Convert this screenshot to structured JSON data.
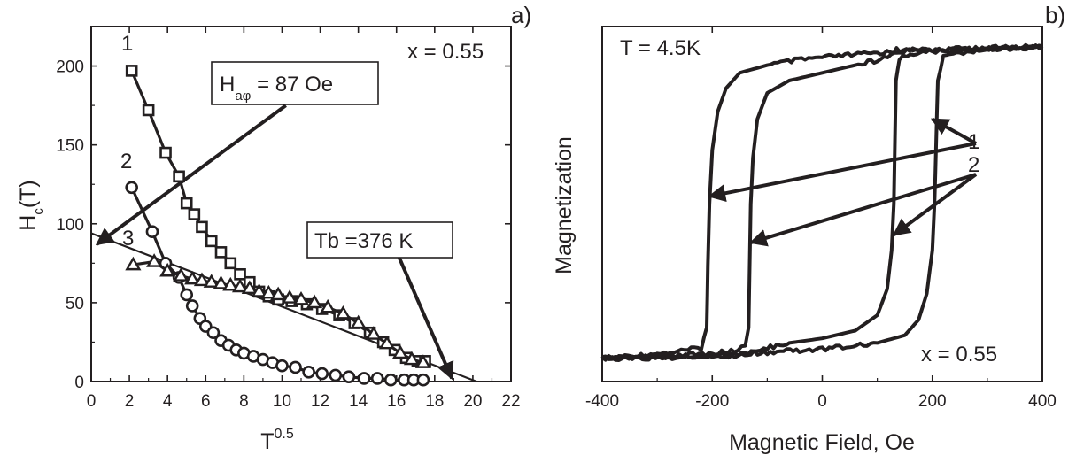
{
  "chart_data": [
    {
      "type": "scatter",
      "panel_label": "a)",
      "xlabel": {
        "base": "T",
        "sup": "0.5"
      },
      "ylabel": {
        "base": "H",
        "sub": "c",
        "rest": "(T)"
      },
      "xlim": [
        0,
        22
      ],
      "ylim": [
        0,
        225
      ],
      "xticks": [
        0,
        2,
        4,
        6,
        8,
        10,
        12,
        14,
        16,
        18,
        20,
        22
      ],
      "yticks": [
        0,
        50,
        100,
        150,
        200
      ],
      "composition_label": "x = 0.55",
      "annotations": [
        {
          "id": "ha",
          "base": "H",
          "sub": "aφ",
          "rest": " = 87 Oe",
          "arrow_to": [
            0.3,
            87
          ]
        },
        {
          "id": "tb",
          "text": "Tb =376 K",
          "arrow_to": [
            18.9,
            2
          ]
        }
      ],
      "series": [
        {
          "name": "1",
          "marker": "square",
          "points": [
            [
              2.12,
              197
            ],
            [
              3.0,
              172
            ],
            [
              3.9,
              145
            ],
            [
              4.6,
              130
            ],
            [
              5.0,
              113
            ],
            [
              5.4,
              106
            ],
            [
              5.8,
              98
            ],
            [
              6.3,
              89
            ],
            [
              6.8,
              82
            ],
            [
              7.3,
              75
            ],
            [
              7.8,
              68
            ],
            [
              8.3,
              63
            ],
            [
              8.8,
              57
            ],
            [
              9.3,
              54
            ],
            [
              9.8,
              52
            ],
            [
              10.5,
              51
            ],
            [
              11.3,
              49
            ],
            [
              12.1,
              46
            ],
            [
              13.0,
              42
            ],
            [
              13.8,
              37
            ],
            [
              14.6,
              31
            ],
            [
              15.3,
              25
            ],
            [
              15.9,
              20
            ],
            [
              16.5,
              15
            ],
            [
              17.1,
              13
            ],
            [
              17.5,
              13
            ]
          ]
        },
        {
          "name": "2",
          "marker": "circle",
          "points": [
            [
              2.12,
              123
            ],
            [
              3.2,
              95
            ],
            [
              3.9,
              75
            ],
            [
              4.6,
              66
            ],
            [
              5.0,
              55
            ],
            [
              5.3,
              48
            ],
            [
              5.7,
              40
            ],
            [
              6.0,
              35
            ],
            [
              6.4,
              31
            ],
            [
              6.8,
              26
            ],
            [
              7.2,
              23
            ],
            [
              7.6,
              20
            ],
            [
              8.0,
              18
            ],
            [
              8.5,
              16
            ],
            [
              9.0,
              14
            ],
            [
              9.5,
              12
            ],
            [
              10.0,
              10
            ],
            [
              10.7,
              9
            ],
            [
              11.4,
              6
            ],
            [
              12.1,
              5
            ],
            [
              12.8,
              4
            ],
            [
              13.5,
              3
            ],
            [
              14.3,
              2
            ],
            [
              15.0,
              2
            ],
            [
              15.7,
              1
            ],
            [
              16.4,
              1
            ],
            [
              16.9,
              1
            ],
            [
              17.4,
              1
            ]
          ]
        },
        {
          "name": "3",
          "marker": "triangle",
          "points": [
            [
              2.2,
              74
            ],
            [
              3.3,
              76
            ],
            [
              4.0,
              70
            ],
            [
              4.7,
              67
            ],
            [
              5.3,
              65
            ],
            [
              5.8,
              64
            ],
            [
              6.3,
              63
            ],
            [
              6.8,
              62
            ],
            [
              7.3,
              61
            ],
            [
              7.8,
              60
            ],
            [
              8.3,
              59
            ],
            [
              8.8,
              57
            ],
            [
              9.3,
              56
            ],
            [
              9.8,
              55
            ],
            [
              10.4,
              53
            ],
            [
              11.0,
              52
            ],
            [
              11.7,
              50
            ],
            [
              12.4,
              47
            ],
            [
              13.2,
              43
            ],
            [
              14.0,
              37
            ],
            [
              14.8,
              30
            ],
            [
              15.5,
              24
            ],
            [
              16.2,
              18
            ],
            [
              16.8,
              14
            ],
            [
              17.4,
              12
            ]
          ]
        }
      ]
    },
    {
      "type": "line",
      "panel_label": "b)",
      "xlabel": "Magnetic Field, Oe",
      "ylabel": "Magnetization",
      "xlim": [
        -400,
        400
      ],
      "ylim": [
        -1.15,
        1.15
      ],
      "xticks": [
        -400,
        -200,
        0,
        200,
        400
      ],
      "temperature_label": "T = 4.5K",
      "composition_label": "x = 0.55",
      "annotations": [
        {
          "text": "1",
          "arrows_to": [
            [
              -205,
              0.05
            ],
            [
              200,
              0.55
            ]
          ]
        },
        {
          "text": "2",
          "arrows_to": [
            [
              -130,
              -0.25
            ],
            [
              130,
              -0.2
            ]
          ]
        }
      ],
      "series": [
        {
          "name": "1",
          "upper_branch": [
            [
              -400,
              -1.0
            ],
            [
              -300,
              -0.97
            ],
            [
              -250,
              -0.95
            ],
            [
              -220,
              -0.93
            ],
            [
              -210,
              -0.8
            ],
            [
              -208,
              -0.4
            ],
            [
              -205,
              0.0
            ],
            [
              -200,
              0.35
            ],
            [
              -190,
              0.6
            ],
            [
              -175,
              0.75
            ],
            [
              -150,
              0.85
            ],
            [
              -100,
              0.9
            ],
            [
              -50,
              0.93
            ],
            [
              0,
              0.95
            ],
            [
              100,
              0.98
            ],
            [
              200,
              1.0
            ],
            [
              400,
              1.02
            ]
          ],
          "lower_branch": [
            [
              400,
              1.02
            ],
            [
              300,
              1.0
            ],
            [
              250,
              0.98
            ],
            [
              220,
              0.95
            ],
            [
              210,
              0.8
            ],
            [
              207,
              0.4
            ],
            [
              204,
              0.0
            ],
            [
              200,
              -0.3
            ],
            [
              190,
              -0.58
            ],
            [
              175,
              -0.75
            ],
            [
              150,
              -0.85
            ],
            [
              100,
              -0.9
            ],
            [
              50,
              -0.92
            ],
            [
              0,
              -0.94
            ],
            [
              -100,
              -0.96
            ],
            [
              -200,
              -0.98
            ],
            [
              -400,
              -1.0
            ]
          ]
        },
        {
          "name": "2",
          "upper_branch": [
            [
              -400,
              -1.0
            ],
            [
              -200,
              -0.97
            ],
            [
              -160,
              -0.95
            ],
            [
              -140,
              -0.92
            ],
            [
              -134,
              -0.8
            ],
            [
              -132,
              -0.4
            ],
            [
              -130,
              0.0
            ],
            [
              -126,
              0.3
            ],
            [
              -118,
              0.55
            ],
            [
              -100,
              0.72
            ],
            [
              -60,
              0.8
            ],
            [
              0,
              0.85
            ],
            [
              60,
              0.9
            ],
            [
              100,
              0.93
            ],
            [
              125,
              0.96
            ],
            [
              135,
              1.0
            ],
            [
              200,
              1.0
            ],
            [
              400,
              1.02
            ]
          ],
          "lower_branch": [
            [
              400,
              1.02
            ],
            [
              200,
              0.99
            ],
            [
              160,
              0.97
            ],
            [
              140,
              0.94
            ],
            [
              134,
              0.8
            ],
            [
              132,
              0.4
            ],
            [
              130,
              0.0
            ],
            [
              126,
              -0.3
            ],
            [
              118,
              -0.55
            ],
            [
              100,
              -0.72
            ],
            [
              60,
              -0.82
            ],
            [
              0,
              -0.87
            ],
            [
              -60,
              -0.9
            ],
            [
              -100,
              -0.93
            ],
            [
              -125,
              -0.96
            ],
            [
              -135,
              -0.98
            ],
            [
              -200,
              -0.99
            ],
            [
              -400,
              -1.0
            ]
          ]
        }
      ]
    }
  ]
}
